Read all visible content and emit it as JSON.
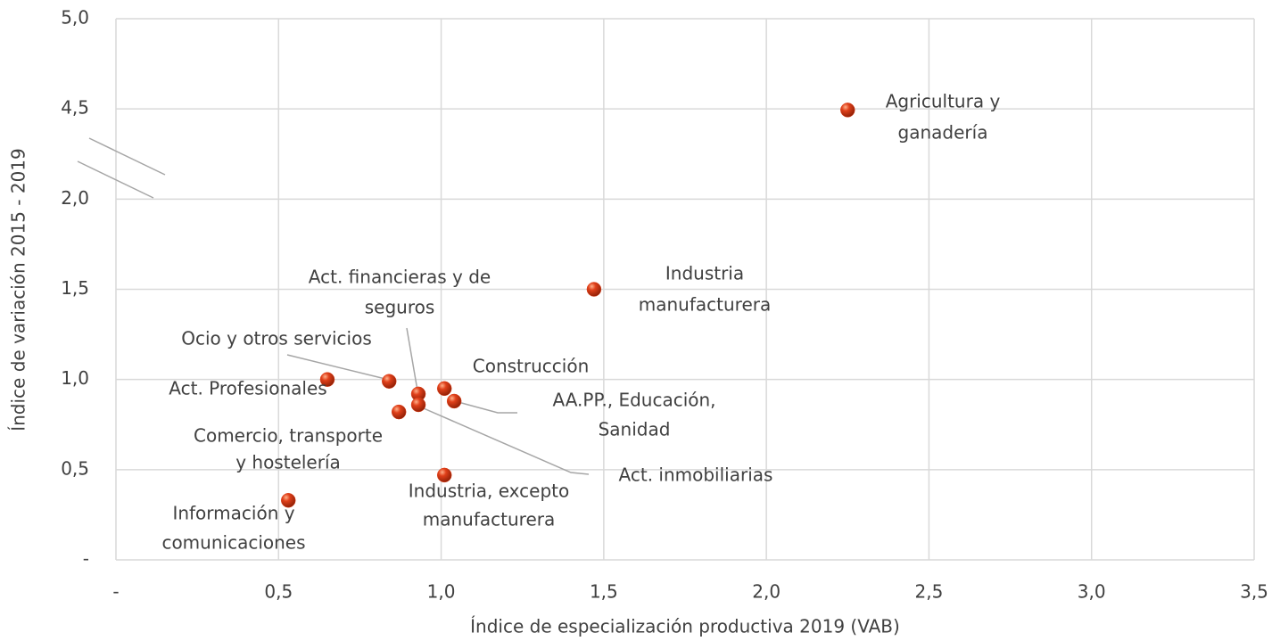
{
  "chart_data": {
    "type": "scatter",
    "x_axis_label": "Índice de especialización productiva 2019 (VAB)",
    "y_axis_label": "Índice de variación 2015 - 2019",
    "labels": [
      [
        "Agricultura y",
        "ganadería"
      ],
      [
        "Industria",
        "manufacturera"
      ],
      [
        "Act. Profesionales"
      ],
      [
        "Ocio y otros servicios"
      ],
      [
        "Act. financieras y de",
        "seguros"
      ],
      [
        "Construcción"
      ],
      [
        "AA.PP., Educación,",
        "Sanidad"
      ],
      [
        "Act. inmobiliarias"
      ],
      [
        "Comercio, transporte",
        "y hostelería"
      ],
      [
        "Industria, excepto",
        "manufacturera"
      ],
      [
        "Información y",
        "comunicaciones"
      ]
    ],
    "x": [
      2.25,
      1.47,
      0.65,
      0.84,
      0.93,
      1.01,
      1.04,
      0.93,
      0.87,
      1.01,
      0.53
    ],
    "y": [
      4.47,
      1.5,
      1.0,
      0.99,
      0.92,
      0.95,
      0.88,
      0.86,
      0.82,
      0.47,
      0.33
    ],
    "color": "#e0401a",
    "xlim": [
      0,
      3.5
    ],
    "xticks": [
      {
        "value": 0,
        "label": "-"
      },
      {
        "value": 0.5,
        "label": "0,5"
      },
      {
        "value": 1.0,
        "label": "1,0"
      },
      {
        "value": 1.5,
        "label": "1,5"
      },
      {
        "value": 2.0,
        "label": "2,0"
      },
      {
        "value": 2.5,
        "label": "2,5"
      },
      {
        "value": 3.0,
        "label": "3,0"
      },
      {
        "value": 3.5,
        "label": "3,5"
      }
    ],
    "ylim": [
      0,
      5
    ],
    "yticks": [
      {
        "value": 0,
        "label": "-"
      },
      {
        "value": 0.5,
        "label": "0,5"
      },
      {
        "value": 1.0,
        "label": "1,0"
      },
      {
        "value": 1.5,
        "label": "1,5"
      },
      {
        "value": 2.0,
        "label": "2,0"
      },
      {
        "value": 4.5,
        "label": "4,5"
      },
      {
        "value": 5.0,
        "label": "5,0"
      }
    ],
    "y_axis_break": true,
    "grid": true
  }
}
